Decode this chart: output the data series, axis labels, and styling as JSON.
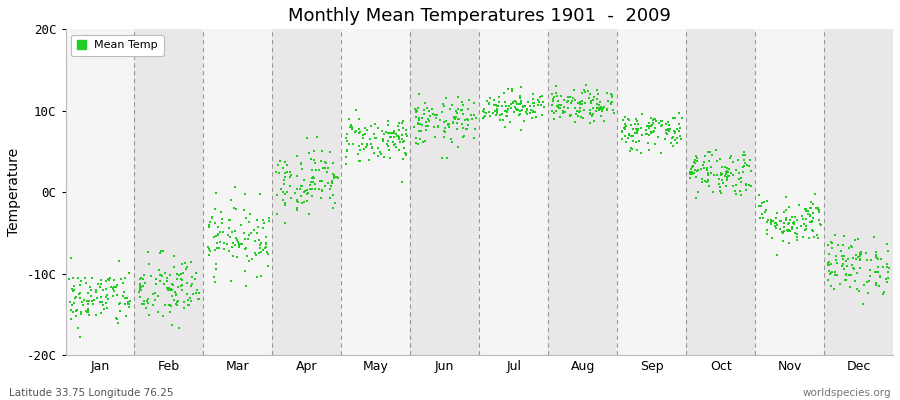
{
  "title": "Monthly Mean Temperatures 1901  -  2009",
  "ylabel": "Temperature",
  "subtitle_left": "Latitude 33.75 Longitude 76.25",
  "subtitle_right": "worldspecies.org",
  "legend_label": "Mean Temp",
  "ylim": [
    -20,
    20
  ],
  "yticks": [
    -20,
    -10,
    0,
    10,
    20
  ],
  "ytick_labels": [
    "-20C",
    "-10C",
    "0C",
    "10C",
    "20C"
  ],
  "months": [
    "Jan",
    "Feb",
    "Mar",
    "Apr",
    "May",
    "Jun",
    "Jul",
    "Aug",
    "Sep",
    "Oct",
    "Nov",
    "Dec"
  ],
  "dot_color": "#22cc22",
  "dot_size": 2.5,
  "background_light": "#f5f5f5",
  "background_dark": "#e8e8e8",
  "month_means": [
    -13.0,
    -12.0,
    -5.5,
    1.5,
    6.5,
    8.5,
    10.5,
    10.5,
    7.5,
    2.5,
    -3.5,
    -9.0
  ],
  "month_stds": [
    1.8,
    2.2,
    2.2,
    2.0,
    1.5,
    1.5,
    1.0,
    1.0,
    1.2,
    1.5,
    1.5,
    1.8
  ],
  "n_years": 109,
  "seed": 42,
  "fig_width": 9.0,
  "fig_height": 4.0,
  "dpi": 100
}
